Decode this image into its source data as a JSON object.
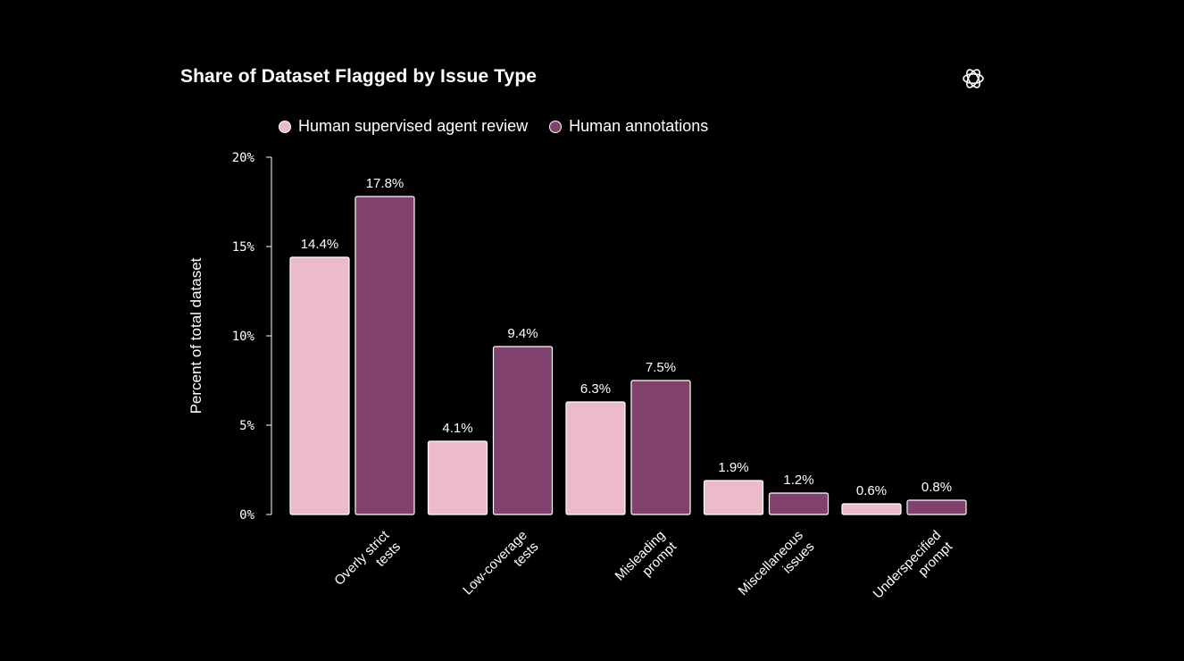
{
  "title": "Share of Dataset Flagged by Issue Type",
  "logo_icon": "openai-logo-icon",
  "colors": {
    "background": "#000000",
    "series_1": "#ebbbc9",
    "series_2": "#80426c",
    "border": "#ffffff",
    "text": "#ffffff"
  },
  "chart_data": {
    "type": "bar",
    "title": "Share of Dataset Flagged by Issue Type",
    "xlabel": "",
    "ylabel": "Percent of total dataset",
    "ylim": [
      0,
      20
    ],
    "yticks": [
      0,
      5,
      10,
      15,
      20
    ],
    "ytick_labels": [
      "0%",
      "5%",
      "10%",
      "15%",
      "20%"
    ],
    "grid": false,
    "legend_position": "top",
    "categories": [
      [
        "Overly strict",
        "tests"
      ],
      [
        "Low-coverage",
        "tests"
      ],
      [
        "Misleading",
        "prompt"
      ],
      [
        "Miscellaneous",
        "issues"
      ],
      [
        "Underspecified",
        "prompt"
      ]
    ],
    "series": [
      {
        "name": "Human supervised agent review",
        "color": "#ebbbc9",
        "values": [
          14.4,
          4.1,
          6.3,
          1.9,
          0.6
        ],
        "labels": [
          "14.4%",
          "4.1%",
          "6.3%",
          "1.9%",
          "0.6%"
        ]
      },
      {
        "name": "Human annotations",
        "color": "#80426c",
        "values": [
          17.8,
          9.4,
          7.5,
          1.2,
          0.8
        ],
        "labels": [
          "17.8%",
          "9.4%",
          "7.5%",
          "1.2%",
          "0.8%"
        ]
      }
    ]
  }
}
